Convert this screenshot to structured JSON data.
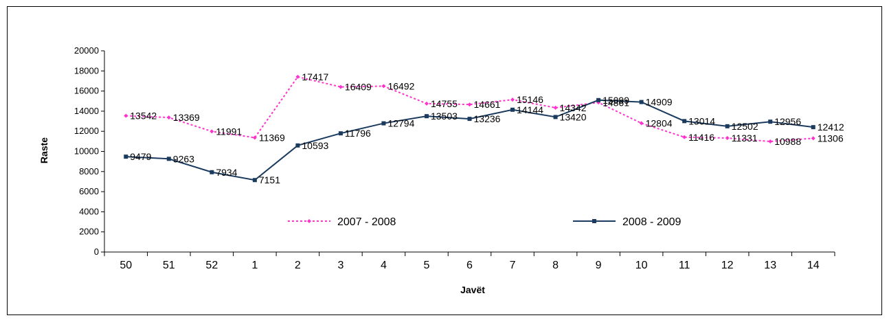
{
  "chart_data": {
    "type": "line",
    "categories": [
      "50",
      "51",
      "52",
      "1",
      "2",
      "3",
      "4",
      "5",
      "6",
      "7",
      "8",
      "9",
      "10",
      "11",
      "12",
      "13",
      "14"
    ],
    "series": [
      {
        "name": "2007 - 2008",
        "color": "#ff33cc",
        "style": "dotted",
        "values": [
          13542,
          13369,
          11991,
          11369,
          17417,
          16409,
          16492,
          14755,
          14661,
          15146,
          14342,
          14861,
          12804,
          11416,
          11331,
          10988,
          11306
        ]
      },
      {
        "name": "2008 - 2009",
        "color": "#1a3a5e",
        "style": "solid",
        "values": [
          9479,
          9263,
          7934,
          7151,
          10593,
          11796,
          12794,
          13503,
          13236,
          14144,
          13420,
          15099,
          14909,
          13014,
          12502,
          12956,
          12412
        ]
      }
    ],
    "xlabel": "Javët",
    "ylabel": "Raste",
    "ylim": [
      0,
      20000
    ],
    "yticks": [
      0,
      2000,
      4000,
      6000,
      8000,
      10000,
      12000,
      14000,
      16000,
      18000,
      20000
    ],
    "grid": false,
    "legend": "inside-bottom"
  }
}
